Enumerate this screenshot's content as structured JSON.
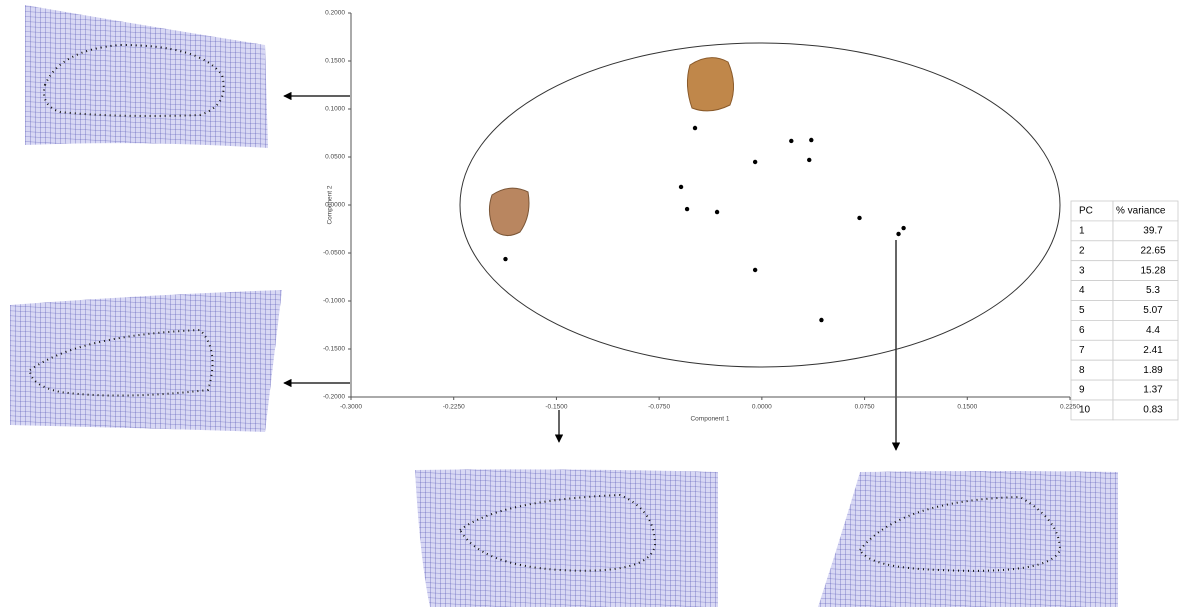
{
  "chart_data": {
    "type": "scatter",
    "x_label": "Component 1",
    "y_label": "Component 2",
    "x": [
      -0.1872,
      -0.0488,
      -0.059,
      -0.0546,
      -0.0327,
      -0.0049,
      0.0215,
      0.0361,
      0.0346,
      -0.0049,
      0.0713,
      0.1035,
      0.0998,
      0.0435
    ],
    "values": [
      -0.0563,
      0.0802,
      0.0188,
      -0.0042,
      -0.0073,
      0.0448,
      0.0667,
      0.0677,
      0.0469,
      -0.0677,
      -0.0135,
      -0.024,
      -0.0302,
      -0.1198
    ],
    "color": "#000000",
    "xlim": [
      -0.3,
      0.225
    ],
    "xticks": [
      {
        "value": -0.3,
        "label": "-0.3000"
      },
      {
        "value": -0.225,
        "label": "-0.2250"
      },
      {
        "value": -0.15,
        "label": "-0.1500"
      },
      {
        "value": -0.075,
        "label": "-0.0750"
      },
      {
        "value": 0,
        "label": "0.0000"
      },
      {
        "value": 0.075,
        "label": "0.0750"
      },
      {
        "value": 0.15,
        "label": "0.1500"
      },
      {
        "value": 0.225,
        "label": "0.2250"
      }
    ],
    "ylim": [
      -0.2,
      0.2
    ],
    "yticks": [
      {
        "value": -0.2,
        "label": "-0.2000"
      },
      {
        "value": -0.15,
        "label": "-0.1500"
      },
      {
        "value": -0.1,
        "label": "-0.1000"
      },
      {
        "value": -0.05,
        "label": "-0.0500"
      },
      {
        "value": 0,
        "label": "0.0000"
      },
      {
        "value": 0.05,
        "label": "0.0500"
      },
      {
        "value": 0.1,
        "label": "0.1000"
      },
      {
        "value": 0.15,
        "label": "0.1500"
      },
      {
        "value": 0.2,
        "label": "0.2000"
      }
    ]
  },
  "table": {
    "header": [
      "PC",
      "% variance"
    ],
    "rows": [
      [
        "1",
        "39.7"
      ],
      [
        "2",
        "22.65"
      ],
      [
        "3",
        "15.28"
      ],
      [
        "4",
        "5.3"
      ],
      [
        "5",
        "5.07"
      ],
      [
        "6",
        "4.4"
      ],
      [
        "7",
        "2.41"
      ],
      [
        "8",
        "1.89"
      ],
      [
        "9",
        "1.37"
      ],
      [
        "10",
        "0.83"
      ]
    ]
  }
}
